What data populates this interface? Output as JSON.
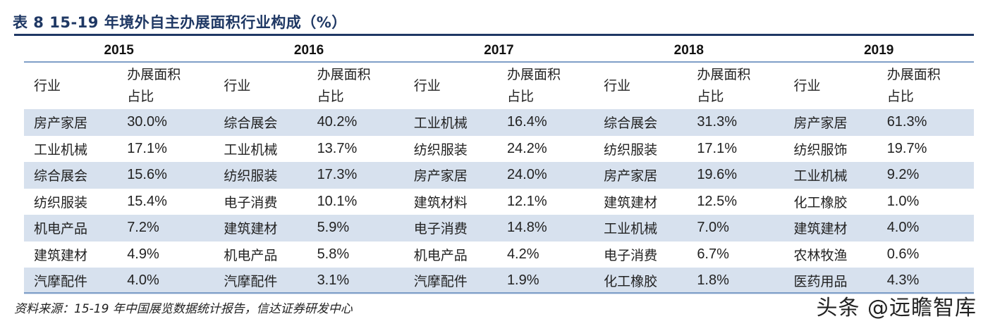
{
  "title": "表 8  15-19 年境外自主办展面积行业构成（%）",
  "years": [
    "2015",
    "2016",
    "2017",
    "2018",
    "2019"
  ],
  "header": {
    "industry": "行业",
    "share_line1": "办展面积",
    "share_line2": "占比"
  },
  "rows": [
    [
      [
        "房产家居",
        "30.0%"
      ],
      [
        "综合展会",
        "40.2%"
      ],
      [
        "工业机械",
        "16.4%"
      ],
      [
        "综合展会",
        "31.3%"
      ],
      [
        "房产家居",
        "61.3%"
      ]
    ],
    [
      [
        "工业机械",
        "17.1%"
      ],
      [
        "工业机械",
        "13.7%"
      ],
      [
        "纺织服装",
        "24.2%"
      ],
      [
        "纺织服装",
        "17.1%"
      ],
      [
        "纺织服饰",
        "19.7%"
      ]
    ],
    [
      [
        "综合展会",
        "15.6%"
      ],
      [
        "纺织服装",
        "17.3%"
      ],
      [
        "房产家居",
        "24.0%"
      ],
      [
        "房产家居",
        "19.6%"
      ],
      [
        "工业机械",
        "9.2%"
      ]
    ],
    [
      [
        "纺织服装",
        "15.4%"
      ],
      [
        "电子消费",
        "10.1%"
      ],
      [
        "建筑材料",
        "12.1%"
      ],
      [
        "建筑建材",
        "12.5%"
      ],
      [
        "化工橡胶",
        "1.0%"
      ]
    ],
    [
      [
        "机电产品",
        "7.2%"
      ],
      [
        "建筑建材",
        "5.9%"
      ],
      [
        "电子消费",
        "14.8%"
      ],
      [
        "工业机械",
        "7.0%"
      ],
      [
        "建筑建材",
        "4.0%"
      ]
    ],
    [
      [
        "建筑建材",
        "4.9%"
      ],
      [
        "机电产品",
        "5.8%"
      ],
      [
        "机电产品",
        "4.2%"
      ],
      [
        "电子消费",
        "6.7%"
      ],
      [
        "农林牧渔",
        "0.6%"
      ]
    ],
    [
      [
        "汽摩配件",
        "4.0%"
      ],
      [
        "汽摩配件",
        "3.1%"
      ],
      [
        "汽摩配件",
        "1.9%"
      ],
      [
        "化工橡胶",
        "1.8%"
      ],
      [
        "医药用品",
        "4.3%"
      ]
    ]
  ],
  "source": "资料来源：15-19 年中国展览数据统计报告，信达证券研发中心",
  "watermark": "头条 @远瞻智库",
  "colors": {
    "title": "#1f3864",
    "shade": "#d7e1ee",
    "rule": "#7f9fc8"
  }
}
